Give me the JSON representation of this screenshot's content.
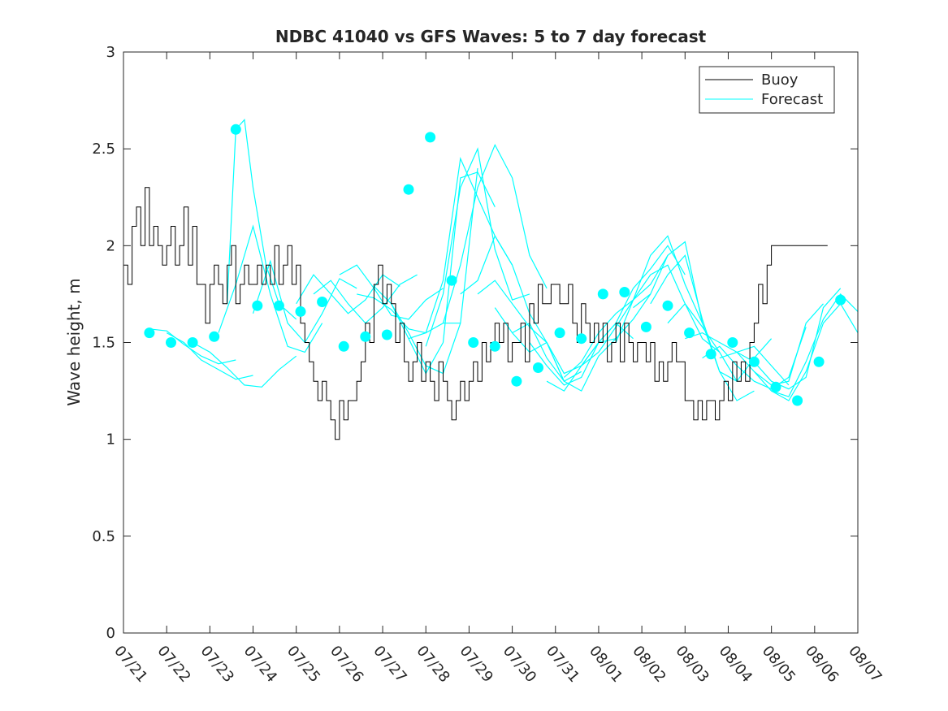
{
  "chart_data": {
    "type": "line",
    "title": "NDBC 41040 vs GFS Waves: 5 to 7 day forecast",
    "xlabel": "",
    "ylabel": "Wave height, m",
    "xlim": [
      "07/21",
      "08/07"
    ],
    "ylim": [
      0,
      3
    ],
    "x_tick_labels": [
      "07/21",
      "07/22",
      "07/23",
      "07/24",
      "07/25",
      "07/26",
      "07/27",
      "07/28",
      "07/29",
      "07/30",
      "07/31",
      "08/01",
      "08/02",
      "08/03",
      "08/04",
      "08/05",
      "08/06",
      "08/07"
    ],
    "y_ticks": [
      0,
      0.5,
      1,
      1.5,
      2,
      2.5,
      3
    ],
    "grid": false,
    "legend_position": "top-right",
    "legend": [
      "Buoy",
      "Forecast"
    ],
    "colors": {
      "buoy": "#000000",
      "forecast": "#00ffff",
      "axes": "#262626"
    },
    "buoy": {
      "x": [
        0,
        0.1,
        0.2,
        0.3,
        0.4,
        0.5,
        0.6,
        0.7,
        0.8,
        0.9,
        1.0,
        1.1,
        1.2,
        1.3,
        1.4,
        1.5,
        1.6,
        1.7,
        1.8,
        1.9,
        2.0,
        2.1,
        2.2,
        2.3,
        2.4,
        2.5,
        2.6,
        2.7,
        2.8,
        2.9,
        3.0,
        3.1,
        3.2,
        3.3,
        3.4,
        3.5,
        3.6,
        3.7,
        3.8,
        3.9,
        4.0,
        4.1,
        4.2,
        4.3,
        4.4,
        4.5,
        4.6,
        4.7,
        4.8,
        4.9,
        5.0,
        5.1,
        5.2,
        5.3,
        5.4,
        5.5,
        5.6,
        5.7,
        5.8,
        5.9,
        6.0,
        6.1,
        6.2,
        6.3,
        6.4,
        6.5,
        6.6,
        6.7,
        6.8,
        6.9,
        7.0,
        7.1,
        7.2,
        7.3,
        7.4,
        7.5,
        7.6,
        7.7,
        7.8,
        7.9,
        8.0,
        8.1,
        8.2,
        8.3,
        8.4,
        8.5,
        8.6,
        8.7,
        8.8,
        8.9,
        9.0,
        9.1,
        9.2,
        9.3,
        9.4,
        9.5,
        9.6,
        9.7,
        9.8,
        9.9,
        10.0,
        10.1,
        10.2,
        10.3,
        10.4,
        10.5,
        10.6,
        10.7,
        10.8,
        10.9,
        11.0,
        11.1,
        11.2,
        11.3,
        11.4,
        11.5,
        11.6,
        11.7,
        11.8,
        11.9,
        12.0,
        12.1,
        12.2,
        12.3,
        12.4,
        12.5,
        12.6,
        12.7,
        12.8,
        12.9,
        13.0,
        13.1,
        13.2,
        13.3,
        13.4,
        13.5,
        13.6,
        13.7,
        13.8,
        13.9,
        14.0,
        14.1,
        14.2,
        14.3,
        14.4,
        14.5,
        14.6,
        14.7,
        14.8,
        14.9,
        15.0,
        15.1,
        15.2,
        15.3,
        15.4,
        15.5,
        15.6,
        15.7,
        15.8,
        15.9,
        16.0,
        16.1,
        16.2,
        16.3
      ],
      "y": [
        1.9,
        1.8,
        2.1,
        2.2,
        2.0,
        2.3,
        2.0,
        2.1,
        2.0,
        1.9,
        2.0,
        2.1,
        1.9,
        2.0,
        2.2,
        1.9,
        2.1,
        1.8,
        1.8,
        1.6,
        1.8,
        1.9,
        1.8,
        1.7,
        1.9,
        2.0,
        1.7,
        1.8,
        1.9,
        1.8,
        1.8,
        1.9,
        1.8,
        1.9,
        1.8,
        2.0,
        1.8,
        1.9,
        2.0,
        1.8,
        1.9,
        1.6,
        1.5,
        1.4,
        1.3,
        1.2,
        1.3,
        1.2,
        1.1,
        1.0,
        1.2,
        1.1,
        1.2,
        1.2,
        1.3,
        1.4,
        1.6,
        1.5,
        1.8,
        1.9,
        1.7,
        1.8,
        1.7,
        1.5,
        1.6,
        1.4,
        1.3,
        1.4,
        1.5,
        1.3,
        1.4,
        1.3,
        1.2,
        1.4,
        1.3,
        1.2,
        1.1,
        1.2,
        1.3,
        1.2,
        1.3,
        1.4,
        1.3,
        1.5,
        1.4,
        1.5,
        1.6,
        1.5,
        1.6,
        1.4,
        1.5,
        1.5,
        1.6,
        1.4,
        1.7,
        1.6,
        1.8,
        1.7,
        1.7,
        1.8,
        1.8,
        1.7,
        1.7,
        1.8,
        1.6,
        1.5,
        1.7,
        1.6,
        1.5,
        1.6,
        1.5,
        1.6,
        1.4,
        1.5,
        1.6,
        1.4,
        1.6,
        1.5,
        1.4,
        1.5,
        1.5,
        1.4,
        1.5,
        1.3,
        1.4,
        1.3,
        1.4,
        1.5,
        1.4,
        1.4,
        1.2,
        1.2,
        1.1,
        1.2,
        1.1,
        1.2,
        1.2,
        1.1,
        1.2,
        1.3,
        1.2,
        1.4,
        1.3,
        1.4,
        1.3,
        1.5,
        1.6,
        1.8,
        1.7,
        1.9,
        2.0,
        2.0,
        2.0,
        2.0,
        2.0,
        2.0,
        2.0,
        2.0,
        2.0,
        2.0,
        2.0,
        2.0,
        2.0,
        2.0
      ]
    },
    "forecast_lines": [
      {
        "x": [
          0.6,
          1.0,
          1.4,
          1.8,
          2.2,
          2.6
        ],
        "y": [
          1.57,
          1.56,
          1.49,
          1.43,
          1.39,
          1.41
        ]
      },
      {
        "x": [
          1.0,
          1.4,
          1.8,
          2.2,
          2.6,
          3.0
        ],
        "y": [
          1.55,
          1.5,
          1.41,
          1.36,
          1.31,
          1.33
        ]
      },
      {
        "x": [
          1.6,
          2.0,
          2.4,
          2.8,
          3.2,
          3.6,
          4.0
        ],
        "y": [
          1.5,
          1.45,
          1.37,
          1.28,
          1.27,
          1.36,
          1.43
        ]
      },
      {
        "x": [
          2.2,
          2.6,
          3.0,
          3.4,
          3.8,
          4.2,
          4.6
        ],
        "y": [
          1.55,
          1.8,
          2.1,
          1.75,
          1.48,
          1.45,
          1.6
        ]
      },
      {
        "x": [
          2.4,
          2.6,
          2.8,
          3.0,
          3.3,
          3.6,
          4.0
        ],
        "y": [
          1.7,
          2.6,
          2.65,
          2.3,
          1.9,
          1.7,
          1.62
        ]
      },
      {
        "x": [
          3.0,
          3.4,
          3.8,
          4.2,
          4.6,
          5.0,
          5.4
        ],
        "y": [
          1.65,
          1.92,
          1.6,
          1.5,
          1.65,
          1.83,
          1.78
        ]
      },
      {
        "x": [
          4.0,
          4.4,
          4.8,
          5.2,
          5.6,
          6.0,
          6.4
        ],
        "y": [
          1.7,
          1.85,
          1.75,
          1.65,
          1.72,
          1.85,
          1.79
        ]
      },
      {
        "x": [
          4.4,
          4.8,
          5.2,
          5.6,
          6.0,
          6.4,
          6.8
        ],
        "y": [
          1.75,
          1.82,
          1.7,
          1.6,
          1.68,
          1.8,
          1.85
        ]
      },
      {
        "x": [
          5.0,
          5.4,
          5.8,
          6.2,
          6.6,
          7.0,
          7.4
        ],
        "y": [
          1.85,
          1.9,
          1.78,
          1.64,
          1.62,
          1.72,
          1.78
        ]
      },
      {
        "x": [
          5.4,
          5.8,
          6.2,
          6.6,
          7.0,
          7.4,
          7.8
        ],
        "y": [
          1.75,
          1.73,
          1.67,
          1.57,
          1.55,
          1.6,
          1.6
        ]
      },
      {
        "x": [
          5.8,
          6.2,
          6.6,
          7.0,
          7.4,
          7.8,
          8.2
        ],
        "y": [
          1.79,
          1.7,
          1.55,
          1.38,
          1.34,
          1.6,
          2.4
        ]
      },
      {
        "x": [
          6.2,
          6.6,
          7.0,
          7.4,
          7.8,
          8.2,
          8.6
        ],
        "y": [
          1.7,
          1.52,
          1.34,
          1.5,
          2.35,
          2.38,
          2.2
        ]
      },
      {
        "x": [
          6.6,
          7.0,
          7.4,
          7.8,
          8.2,
          8.6,
          9.0
        ],
        "y": [
          1.52,
          1.55,
          1.82,
          2.45,
          2.25,
          2.05,
          1.9
        ]
      },
      {
        "x": [
          7.0,
          7.4,
          7.8,
          8.2,
          8.6,
          9.0,
          9.4
        ],
        "y": [
          1.48,
          1.75,
          2.3,
          2.5,
          1.98,
          1.72,
          1.75
        ]
      },
      {
        "x": [
          7.4,
          7.8,
          8.2,
          8.6,
          9.0,
          9.4,
          9.8
        ],
        "y": [
          1.6,
          1.9,
          2.3,
          2.52,
          2.35,
          1.95,
          1.78
        ]
      },
      {
        "x": [
          7.8,
          8.2,
          8.6,
          9.0,
          9.4,
          9.8,
          10.2
        ],
        "y": [
          1.75,
          1.82,
          2.05,
          1.9,
          1.65,
          1.5,
          1.3
        ]
      },
      {
        "x": [
          8.2,
          8.6,
          9.0,
          9.4,
          9.8,
          10.2,
          10.6
        ],
        "y": [
          1.75,
          1.82,
          1.7,
          1.58,
          1.5,
          1.3,
          1.35
        ]
      },
      {
        "x": [
          8.6,
          9.0,
          9.4,
          9.8,
          10.2,
          10.6,
          11.0
        ],
        "y": [
          1.68,
          1.55,
          1.45,
          1.5,
          1.34,
          1.38,
          1.45
        ]
      },
      {
        "x": [
          9.0,
          9.4,
          9.8,
          10.2,
          10.6,
          11.0,
          11.4
        ],
        "y": [
          1.55,
          1.6,
          1.42,
          1.3,
          1.25,
          1.43,
          1.52
        ]
      },
      {
        "x": [
          9.4,
          9.8,
          10.2,
          10.6,
          11.0,
          11.4,
          11.8
        ],
        "y": [
          1.5,
          1.38,
          1.28,
          1.32,
          1.5,
          1.6,
          1.52
        ]
      },
      {
        "x": [
          9.8,
          10.2,
          10.6,
          11.0,
          11.4,
          11.8,
          12.2
        ],
        "y": [
          1.3,
          1.25,
          1.38,
          1.5,
          1.52,
          1.62,
          1.75
        ]
      },
      {
        "x": [
          10.2,
          10.6,
          11.0,
          11.4,
          11.8,
          12.2,
          12.6
        ],
        "y": [
          1.32,
          1.4,
          1.55,
          1.65,
          1.72,
          1.8,
          1.95
        ]
      },
      {
        "x": [
          10.6,
          11.0,
          11.4,
          11.8,
          12.2,
          12.6,
          13.0
        ],
        "y": [
          1.38,
          1.5,
          1.6,
          1.78,
          1.88,
          2.0,
          1.85
        ]
      },
      {
        "x": [
          11.0,
          11.4,
          11.8,
          12.2,
          12.6,
          13.0,
          13.4
        ],
        "y": [
          1.45,
          1.58,
          1.72,
          1.95,
          2.05,
          1.8,
          1.6
        ]
      },
      {
        "x": [
          11.4,
          11.8,
          12.2,
          12.6,
          13.0,
          13.4,
          13.8
        ],
        "y": [
          1.5,
          1.72,
          1.85,
          1.9,
          1.7,
          1.52,
          1.45
        ]
      },
      {
        "x": [
          11.8,
          12.2,
          12.6,
          13.0,
          13.4,
          13.8,
          14.2
        ],
        "y": [
          1.68,
          1.75,
          1.95,
          2.02,
          1.6,
          1.35,
          1.3
        ]
      },
      {
        "x": [
          12.2,
          12.6,
          13.0,
          13.4,
          13.8,
          14.2,
          14.6
        ],
        "y": [
          1.7,
          1.85,
          1.95,
          1.62,
          1.35,
          1.2,
          1.25
        ]
      },
      {
        "x": [
          12.6,
          13.0,
          13.4,
          13.8,
          14.2,
          14.6,
          15.0
        ],
        "y": [
          1.6,
          1.7,
          1.58,
          1.45,
          1.3,
          1.42,
          1.52
        ]
      },
      {
        "x": [
          13.0,
          13.4,
          13.8,
          14.2,
          14.6,
          15.0,
          15.4
        ],
        "y": [
          1.52,
          1.55,
          1.5,
          1.45,
          1.48,
          1.38,
          1.28
        ]
      },
      {
        "x": [
          13.4,
          13.8,
          14.2,
          14.6,
          15.0,
          15.4,
          15.8
        ],
        "y": [
          1.42,
          1.48,
          1.38,
          1.3,
          1.26,
          1.32,
          1.58
        ]
      },
      {
        "x": [
          13.8,
          14.2,
          14.6,
          15.0,
          15.4,
          15.8,
          16.2
        ],
        "y": [
          1.42,
          1.45,
          1.35,
          1.28,
          1.3,
          1.6,
          1.7
        ]
      },
      {
        "x": [
          14.2,
          14.6,
          15.0,
          15.4,
          15.8,
          16.2,
          16.6
        ],
        "y": [
          1.45,
          1.4,
          1.3,
          1.26,
          1.32,
          1.68,
          1.78
        ]
      },
      {
        "x": [
          14.6,
          15.0,
          15.4,
          15.8,
          16.2,
          16.6,
          17.0
        ],
        "y": [
          1.35,
          1.25,
          1.22,
          1.4,
          1.62,
          1.75,
          1.66
        ]
      },
      {
        "x": [
          15.0,
          15.4,
          15.8,
          16.2,
          16.6,
          17.0
        ],
        "y": [
          1.25,
          1.2,
          1.35,
          1.6,
          1.7,
          1.55
        ]
      }
    ],
    "forecast_points": {
      "x": [
        0.6,
        1.1,
        1.6,
        2.1,
        2.6,
        3.1,
        3.6,
        4.1,
        4.6,
        5.1,
        5.6,
        6.1,
        6.6,
        7.1,
        7.6,
        8.1,
        8.6,
        9.1,
        9.6,
        10.1,
        10.6,
        11.1,
        11.6,
        12.1,
        12.6,
        13.1,
        13.6,
        14.1,
        14.6,
        15.1,
        15.6,
        16.1,
        16.6
      ],
      "y": [
        1.55,
        1.5,
        1.5,
        1.53,
        2.6,
        1.69,
        1.69,
        1.66,
        1.71,
        1.48,
        1.53,
        1.54,
        2.29,
        2.56,
        1.82,
        1.5,
        1.48,
        1.3,
        1.37,
        1.55,
        1.52,
        1.75,
        1.76,
        1.58,
        1.69,
        1.55,
        1.44,
        1.5,
        1.4,
        1.27,
        1.2,
        1.4,
        1.72
      ]
    }
  }
}
